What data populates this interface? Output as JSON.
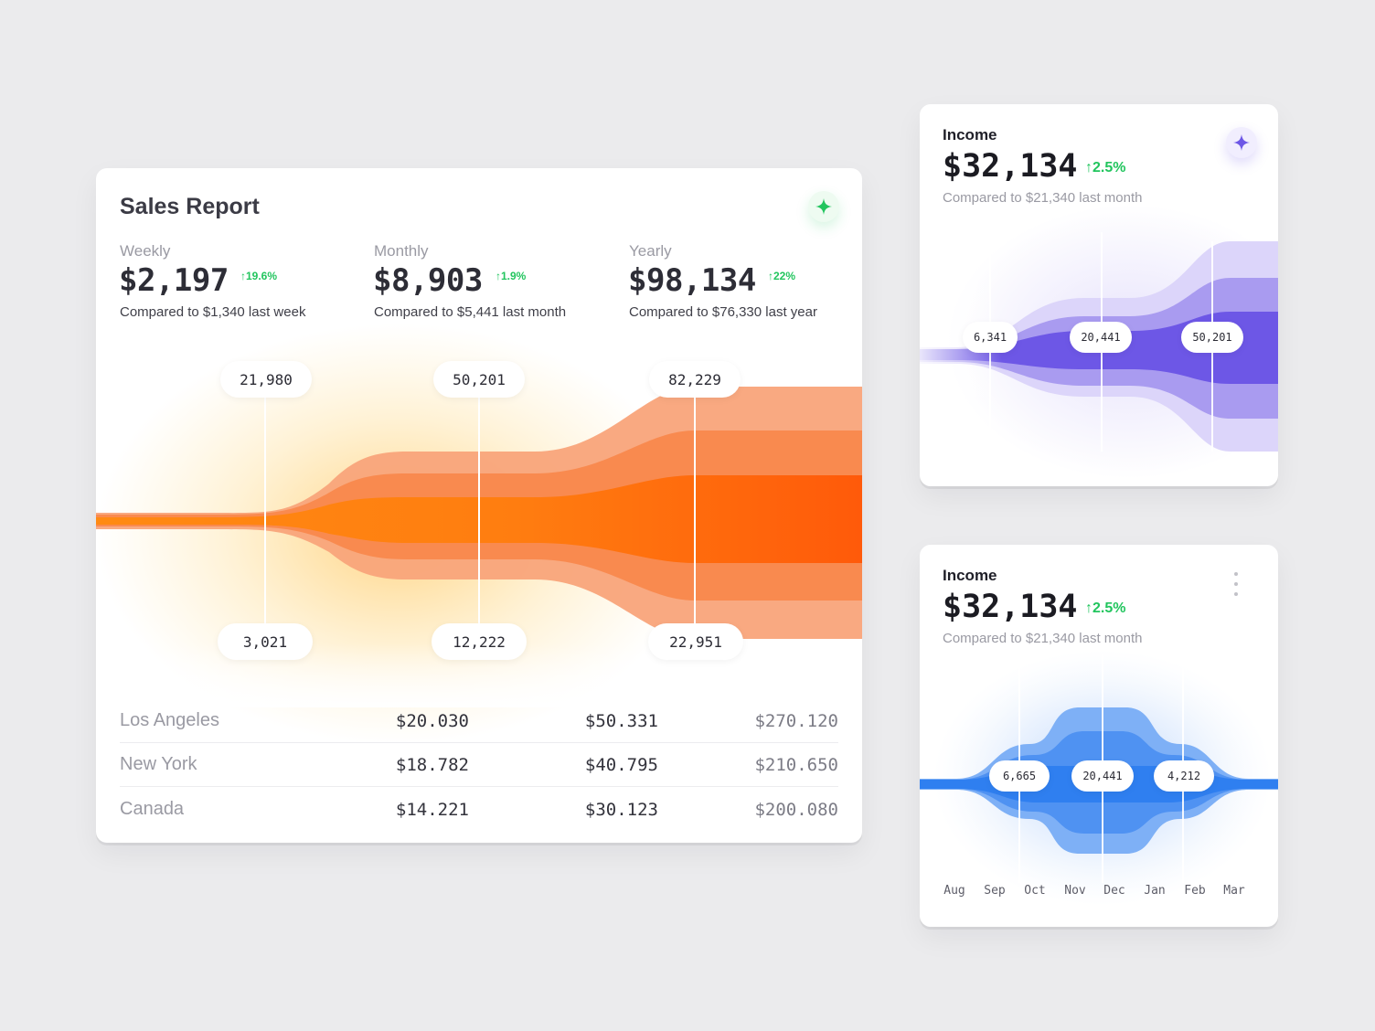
{
  "sales_report": {
    "title": "Sales Report",
    "metrics": [
      {
        "label": "Weekly",
        "value": "$2,197",
        "change": "↑19.6%",
        "compare": "Compared to $1,340 last week"
      },
      {
        "label": "Monthly",
        "value": "$8,903",
        "change": "↑1.9%",
        "compare": "Compared to $5,441 last month"
      },
      {
        "label": "Yearly",
        "value": "$98,134",
        "change": "↑22%",
        "compare": "Compared to $76,330 last year"
      }
    ],
    "top_markers": [
      "21,980",
      "50,201",
      "82,229"
    ],
    "bottom_markers": [
      "3,021",
      "12,222",
      "22,951"
    ],
    "rows": [
      {
        "city": "Los Angeles",
        "values": [
          "$20.030",
          "$50.331",
          "$270.120"
        ]
      },
      {
        "city": "New York",
        "values": [
          "$18.782",
          "$40.795",
          "$210.650"
        ]
      },
      {
        "city": "Canada",
        "values": [
          "$14.221",
          "$30.123",
          "$200.080"
        ]
      }
    ]
  },
  "income_purple": {
    "title": "Income",
    "value": "$32,134",
    "change": "↑2.5%",
    "compare": "Compared to $21,340 last month",
    "markers": [
      "6,341",
      "20,441",
      "50,201"
    ]
  },
  "income_blue": {
    "title": "Income",
    "value": "$32,134",
    "change": "↑2.5%",
    "compare": "Compared to $21,340 last month",
    "markers": [
      "6,665",
      "20,441",
      "4,212"
    ],
    "months": [
      "Aug",
      "Sep",
      "Oct",
      "Nov",
      "Dec",
      "Jan",
      "Feb",
      "Mar"
    ]
  },
  "colors": {
    "orange": "#fb6a10",
    "purple": "#6d57e6",
    "blue": "#2f7ff0",
    "positive": "#22c55e",
    "background": "#ebebed"
  },
  "icons": {
    "sales_sparkle": "sparkle-icon",
    "income_sparkle": "sparkle-icon",
    "menu": "more-vertical-icon"
  }
}
